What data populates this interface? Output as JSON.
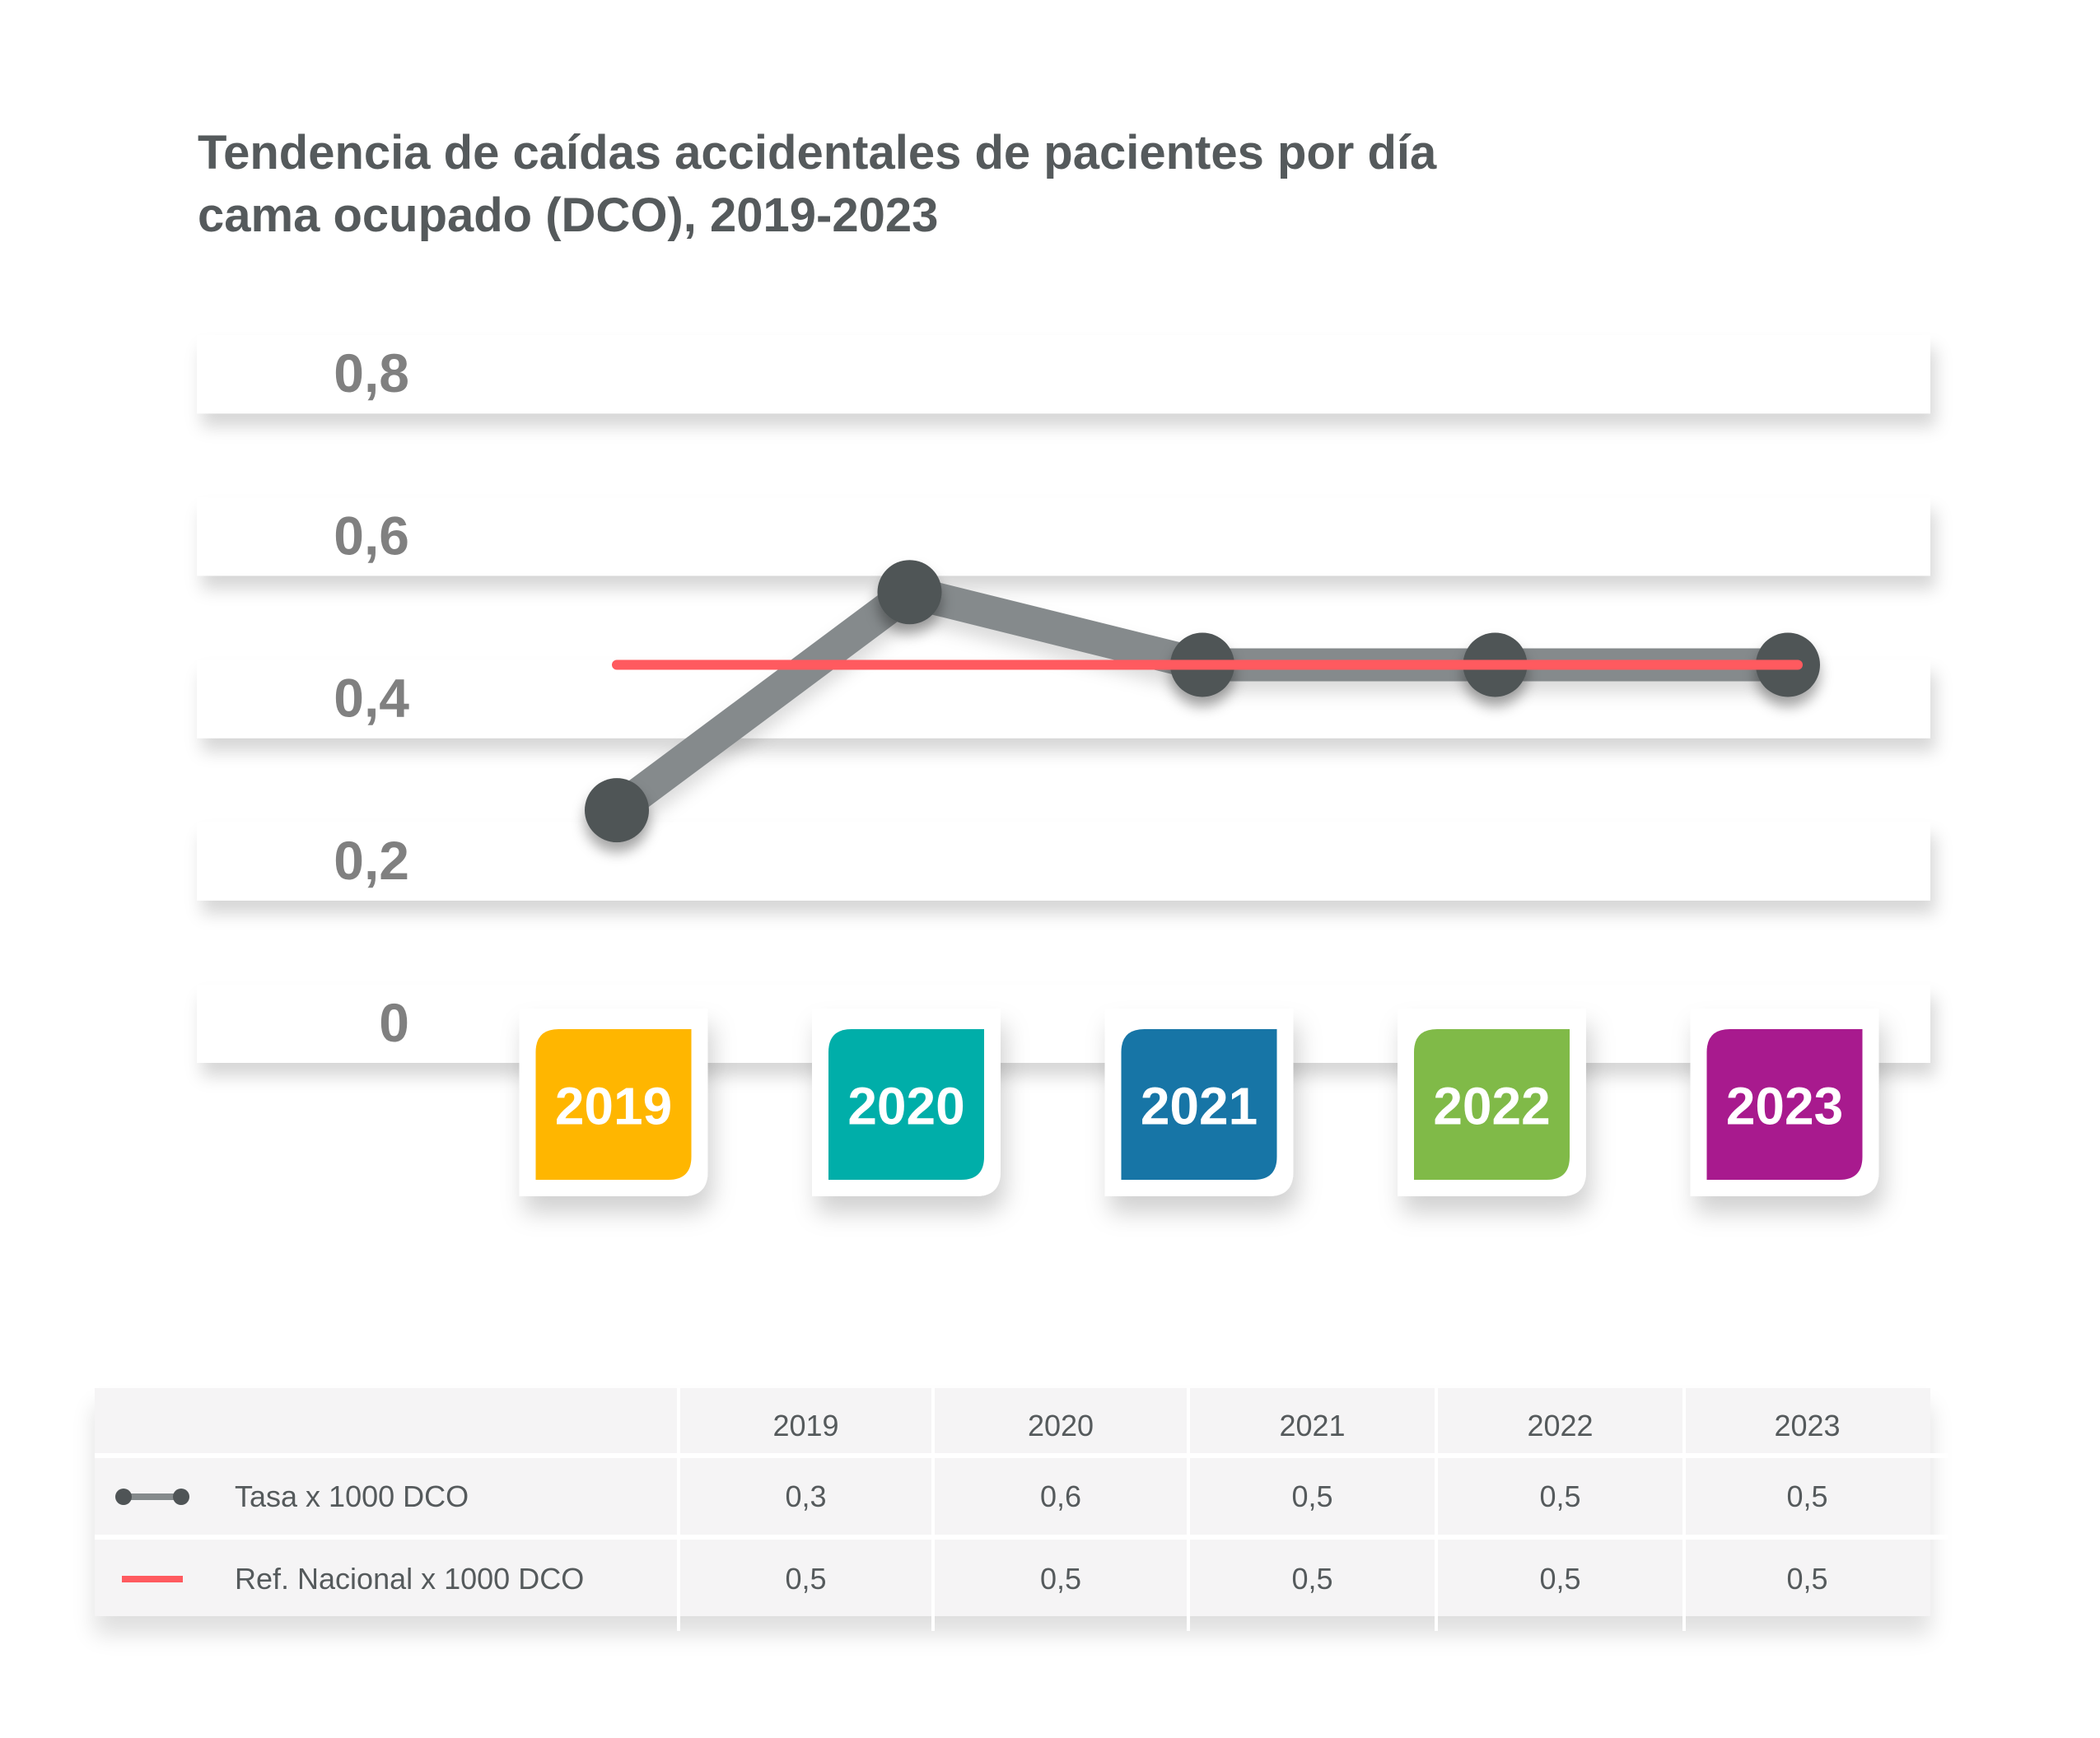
{
  "chart_data": {
    "type": "line",
    "title": "Tendencia de caídas accidentales de pacientes por día cama ocupado (DCO), 2019-2023",
    "title_lines": [
      "Tendencia de caídas accidentales de pacientes por día",
      "cama ocupado (DCO), 2019-2023"
    ],
    "categories": [
      "2019",
      "2020",
      "2021",
      "2022",
      "2023"
    ],
    "category_colors": [
      "#FFB600",
      "#00AEA9",
      "#1775A6",
      "#80BA48",
      "#A81A8E"
    ],
    "y_ticks": [
      0,
      0.2,
      0.4,
      0.6,
      0.8
    ],
    "y_tick_labels": [
      "0",
      "0,2",
      "0,4",
      "0,6",
      "0,8"
    ],
    "ylim": [
      0,
      0.8
    ],
    "xlabel": "",
    "ylabel": "",
    "series": [
      {
        "name": "Tasa x 1000 DCO",
        "values": [
          0.3,
          0.6,
          0.5,
          0.5,
          0.5
        ],
        "color": "#858A8C",
        "marker_color": "#4F5456"
      },
      {
        "name": "Ref. Nacional x 1000 DCO",
        "values": [
          0.5,
          0.5,
          0.5,
          0.5,
          0.5
        ],
        "color": "#FF5A5F"
      }
    ],
    "legend": "table-bottom"
  },
  "table": {
    "header": [
      "",
      "2019",
      "2020",
      "2021",
      "2022",
      "2023"
    ],
    "rows": [
      {
        "label": "Tasa x 1000 DCO",
        "symbol": "gray-line-with-dots-icon",
        "values": [
          "0,3",
          "0,6",
          "0,5",
          "0,5",
          "0,5"
        ]
      },
      {
        "label": "Ref. Nacional x 1000 DCO",
        "symbol": "red-line-icon",
        "values": [
          "0,5",
          "0,5",
          "0,5",
          "0,5",
          "0,5"
        ]
      }
    ]
  }
}
